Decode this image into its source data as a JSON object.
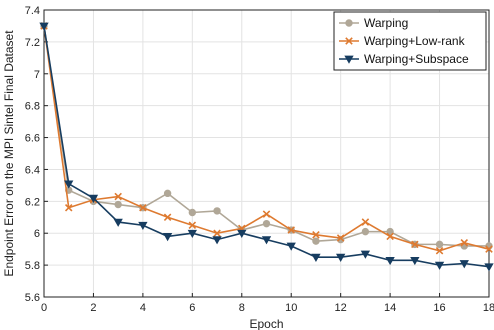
{
  "chart_data": {
    "type": "line",
    "title": "",
    "xlabel": "Epoch",
    "ylabel": "Endpoint Error on the MPI Sintel Final Dataset",
    "xlim": [
      0,
      18
    ],
    "ylim": [
      5.6,
      7.4
    ],
    "xticks": [
      "0",
      "2",
      "4",
      "6",
      "8",
      "10",
      "12",
      "14",
      "16",
      "18"
    ],
    "yticks": [
      "5.6",
      "5.8",
      "6",
      "6.2",
      "6.4",
      "6.6",
      "6.8",
      "7",
      "7.2",
      "7.4"
    ],
    "grid": true,
    "legend_position": "top-right",
    "x": [
      0,
      1,
      2,
      3,
      4,
      5,
      6,
      7,
      8,
      9,
      10,
      11,
      12,
      13,
      14,
      15,
      16,
      17,
      18
    ],
    "series": [
      {
        "name": "Warping",
        "color": "#b0a797",
        "marker": "circle",
        "values": [
          7.3,
          6.27,
          6.2,
          6.18,
          6.16,
          6.25,
          6.13,
          6.14,
          6.02,
          6.06,
          6.02,
          5.95,
          5.96,
          6.01,
          6.01,
          5.93,
          5.93,
          5.92,
          5.92
        ]
      },
      {
        "name": "Warping+Low-rank",
        "color": "#de7a30",
        "marker": "x",
        "values": [
          7.3,
          6.16,
          6.21,
          6.23,
          6.16,
          6.1,
          6.05,
          6.0,
          6.03,
          6.12,
          6.02,
          5.99,
          5.97,
          6.07,
          5.98,
          5.93,
          5.89,
          5.94,
          5.9
        ]
      },
      {
        "name": "Warping+Subspace",
        "color": "#173d60",
        "marker": "triangle-down",
        "values": [
          7.3,
          6.31,
          6.22,
          6.07,
          6.05,
          5.98,
          6.0,
          5.96,
          6.0,
          5.96,
          5.92,
          5.85,
          5.85,
          5.87,
          5.83,
          5.83,
          5.8,
          5.81,
          5.79
        ]
      }
    ]
  }
}
